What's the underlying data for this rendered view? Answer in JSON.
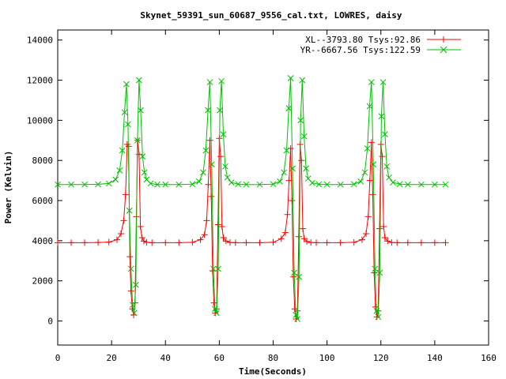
{
  "chart_data": {
    "type": "line",
    "title": "Skynet_59391_sun_60687_9556_cal.txt, LOWRES, daisy",
    "xlabel": "Time(Seconds)",
    "ylabel": "Power (Kelvin)",
    "xlim": [
      0,
      160
    ],
    "ylim": [
      -1200,
      14500
    ],
    "xticks": [
      0,
      20,
      40,
      60,
      80,
      100,
      120,
      140,
      160
    ],
    "yticks": [
      0,
      2000,
      4000,
      6000,
      8000,
      10000,
      12000,
      14000
    ],
    "grid": false,
    "legend_position": "top-right",
    "series": [
      {
        "name": "XL--3793.80 Tsys:92.86",
        "color": "#ff0000",
        "marker": "plus",
        "x": [
          0,
          5,
          10,
          15,
          19,
          22,
          23.5,
          24.5,
          25.2,
          25.8,
          26.3,
          26.8,
          27.2,
          27.7,
          28.2,
          28.7,
          29.2,
          29.7,
          30.2,
          30.7,
          31.3,
          32,
          33,
          35,
          40,
          45,
          50,
          53,
          54.5,
          55.3,
          55.9,
          56.5,
          57,
          57.5,
          58,
          58.5,
          59,
          59.5,
          60,
          60.5,
          61,
          61.5,
          62.5,
          64,
          66,
          70,
          75,
          80,
          83,
          84.5,
          85.3,
          85.9,
          86.5,
          87,
          87.5,
          88,
          88.5,
          89,
          89.5,
          90,
          90.5,
          91,
          91.5,
          92.5,
          94,
          96,
          100,
          105,
          110,
          113,
          114.5,
          115.3,
          115.9,
          116.5,
          117,
          117.5,
          118,
          118.5,
          119,
          119.5,
          120,
          120.5,
          121,
          121.5,
          122.5,
          124,
          126,
          130,
          135,
          140,
          144
        ],
        "y": [
          3900,
          3900,
          3900,
          3910,
          3930,
          4050,
          4350,
          5000,
          6300,
          8800,
          8700,
          3200,
          1500,
          600,
          300,
          900,
          5200,
          9000,
          8300,
          4700,
          4150,
          3980,
          3920,
          3900,
          3900,
          3900,
          3920,
          4050,
          4300,
          5000,
          6800,
          9000,
          6200,
          2500,
          900,
          400,
          600,
          4800,
          9100,
          8200,
          4700,
          4150,
          3980,
          3910,
          3900,
          3900,
          3900,
          3920,
          4100,
          4400,
          5300,
          7000,
          8600,
          6000,
          2200,
          600,
          100,
          500,
          4200,
          8800,
          8000,
          4600,
          4100,
          3960,
          3910,
          3900,
          3900,
          3900,
          3920,
          4050,
          4350,
          5200,
          7000,
          8900,
          6300,
          2400,
          700,
          200,
          500,
          4600,
          8800,
          8200,
          4700,
          4150,
          3980,
          3910,
          3900,
          3900,
          3900,
          3900,
          3900
        ]
      },
      {
        "name": "YR--6667.56 Tsys:122.59",
        "color": "#00c000",
        "marker": "cross",
        "x": [
          0,
          5,
          10,
          15,
          19,
          21.5,
          23,
          24,
          24.8,
          25.5,
          26.1,
          26.6,
          27.2,
          27.8,
          28.4,
          29,
          29.6,
          30.2,
          30.8,
          31.5,
          32.2,
          33,
          34.5,
          37,
          40,
          45,
          50,
          52.5,
          54,
          55,
          55.8,
          56.5,
          57.2,
          57.8,
          58.4,
          59,
          59.6,
          60.2,
          60.8,
          61.5,
          62.2,
          63,
          64.5,
          67,
          70,
          75,
          80,
          82.5,
          84,
          85,
          85.8,
          86.5,
          87.2,
          87.8,
          88.4,
          89,
          89.6,
          90.2,
          90.8,
          91.5,
          92.2,
          93,
          94.5,
          97,
          100,
          105,
          110,
          112.5,
          114,
          115,
          115.8,
          116.5,
          117.2,
          117.8,
          118.4,
          119,
          119.6,
          120.2,
          120.8,
          121.5,
          122.2,
          123,
          124.5,
          127,
          130,
          135,
          140,
          144
        ],
        "y": [
          6800,
          6800,
          6800,
          6810,
          6850,
          7050,
          7500,
          8500,
          10400,
          11800,
          9800,
          5500,
          2600,
          800,
          400,
          1800,
          9000,
          12000,
          10500,
          8200,
          7400,
          7050,
          6850,
          6800,
          6800,
          6800,
          6820,
          6950,
          7400,
          8500,
          10500,
          11900,
          7800,
          2600,
          600,
          400,
          2600,
          10500,
          11950,
          9300,
          7700,
          7150,
          6900,
          6820,
          6800,
          6800,
          6820,
          6950,
          7400,
          8500,
          10600,
          12100,
          7600,
          2400,
          300,
          100,
          2200,
          10000,
          12000,
          9200,
          7600,
          7100,
          6880,
          6810,
          6800,
          6800,
          6820,
          6950,
          7400,
          8600,
          10700,
          11900,
          7800,
          2600,
          500,
          200,
          2400,
          10200,
          11900,
          9300,
          7700,
          7150,
          6900,
          6820,
          6800,
          6800,
          6800,
          6800
        ]
      }
    ]
  }
}
